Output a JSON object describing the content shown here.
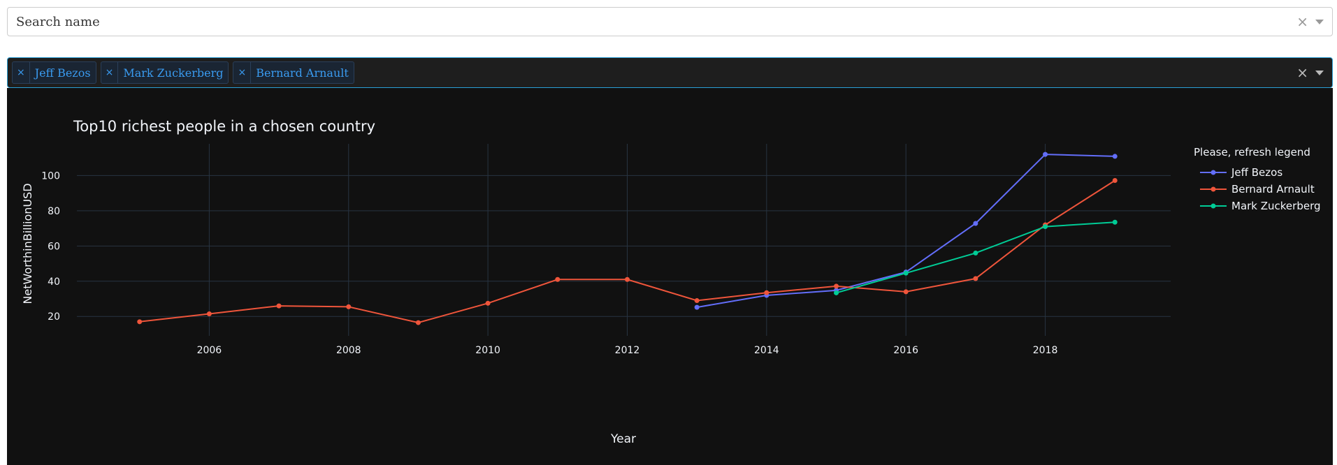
{
  "search": {
    "placeholder": "Search name"
  },
  "selected": {
    "tags": [
      "Jeff Bezos",
      "Mark Zuckerberg",
      "Bernard Arnault"
    ]
  },
  "chart_data": {
    "type": "line",
    "title": "Top10 richest people in a chosen country",
    "xlabel": "Year",
    "ylabel": "NetWorthinBillionUSD",
    "xlim": [
      2004.1,
      2019.8
    ],
    "ylim": [
      9,
      118
    ],
    "xticks": [
      2006,
      2008,
      2010,
      2012,
      2014,
      2016,
      2018
    ],
    "yticks": [
      20,
      40,
      60,
      80,
      100
    ],
    "grid": true,
    "legend_title": "Please, refresh legend",
    "legend_position": "right",
    "series": [
      {
        "name": "Jeff Bezos",
        "color": "#636efa",
        "x": [
          2013,
          2014,
          2015,
          2016,
          2017,
          2018,
          2019
        ],
        "y": [
          25.2,
          32,
          34.8,
          45.2,
          72.8,
          112,
          110.9
        ]
      },
      {
        "name": "Bernard Arnault",
        "color": "#ef553b",
        "x": [
          2005,
          2006,
          2007,
          2008,
          2009,
          2010,
          2011,
          2012,
          2013,
          2014,
          2015,
          2016,
          2017,
          2018,
          2019
        ],
        "y": [
          17,
          21.5,
          26,
          25.5,
          16.5,
          27.5,
          41,
          41,
          29,
          33.5,
          37.2,
          34,
          41.5,
          72,
          97.2
        ]
      },
      {
        "name": "Mark Zuckerberg",
        "color": "#00cc96",
        "x": [
          2015,
          2016,
          2017,
          2018,
          2019
        ],
        "y": [
          33.4,
          44.6,
          56,
          71,
          73.5
        ]
      }
    ]
  }
}
